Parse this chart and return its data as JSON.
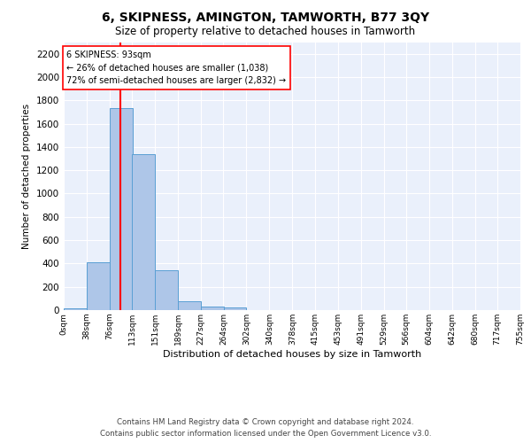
{
  "title": "6, SKIPNESS, AMINGTON, TAMWORTH, B77 3QY",
  "subtitle": "Size of property relative to detached houses in Tamworth",
  "xlabel": "Distribution of detached houses by size in Tamworth",
  "ylabel": "Number of detached properties",
  "bar_color": "#aec6e8",
  "bar_edgecolor": "#5a9fd4",
  "background_color": "#eaf0fb",
  "grid_color": "#ffffff",
  "bin_edges": [
    0,
    38,
    76,
    113,
    151,
    189,
    227,
    264,
    302,
    340,
    378,
    415,
    453,
    491,
    529,
    566,
    604,
    642,
    680,
    717,
    755
  ],
  "bin_labels": [
    "0sqm",
    "38sqm",
    "76sqm",
    "113sqm",
    "151sqm",
    "189sqm",
    "227sqm",
    "264sqm",
    "302sqm",
    "340sqm",
    "378sqm",
    "415sqm",
    "453sqm",
    "491sqm",
    "529sqm",
    "566sqm",
    "604sqm",
    "642sqm",
    "680sqm",
    "717sqm",
    "755sqm"
  ],
  "bar_heights": [
    15,
    410,
    1730,
    1340,
    340,
    75,
    30,
    20,
    0,
    0,
    0,
    0,
    0,
    0,
    0,
    0,
    0,
    0,
    0,
    0
  ],
  "red_line_x": 93,
  "annotation_title": "6 SKIPNESS: 93sqm",
  "annotation_line1": "← 26% of detached houses are smaller (1,038)",
  "annotation_line2": "72% of semi-detached houses are larger (2,832) →",
  "ylim": [
    0,
    2300
  ],
  "yticks": [
    0,
    200,
    400,
    600,
    800,
    1000,
    1200,
    1400,
    1600,
    1800,
    2000,
    2200
  ],
  "footer1": "Contains HM Land Registry data © Crown copyright and database right 2024.",
  "footer2": "Contains public sector information licensed under the Open Government Licence v3.0."
}
